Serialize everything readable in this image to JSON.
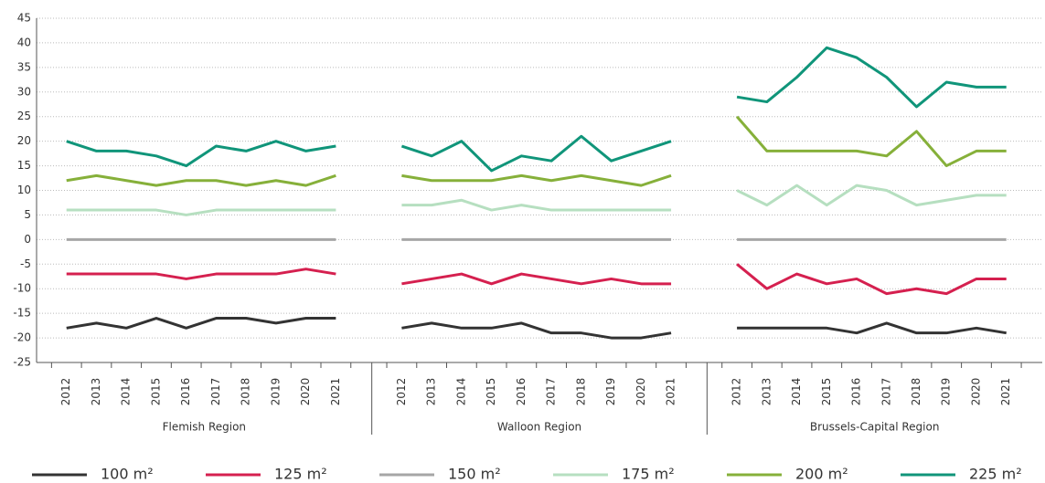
{
  "chart_data": {
    "type": "line",
    "ylim": [
      -25,
      45
    ],
    "yticks": [
      -25,
      -20,
      -15,
      -10,
      -5,
      0,
      5,
      10,
      15,
      20,
      25,
      30,
      35,
      40,
      45
    ],
    "grid": true,
    "group_labels": [
      "Flemish Region",
      "Walloon Region",
      "Brussels-Capital Region"
    ],
    "categories": [
      "2012",
      "2013",
      "2014",
      "2015",
      "2016",
      "2017",
      "2018",
      "2019",
      "2020",
      "2021",
      "2012",
      "2013",
      "2014",
      "2015",
      "2016",
      "2017",
      "2018",
      "2019",
      "2020",
      "2021",
      "2012",
      "2013",
      "2014",
      "2015",
      "2016",
      "2017",
      "2018",
      "2019",
      "2020",
      "2021"
    ],
    "series": [
      {
        "name": "100 m²",
        "color": "#333333",
        "values": [
          -18,
          -17,
          -18,
          -16,
          -18,
          -16,
          -16,
          -17,
          -16,
          -16,
          -18,
          -17,
          -18,
          -18,
          -17,
          -19,
          -19,
          -20,
          -20,
          -19,
          -18,
          -18,
          -18,
          -18,
          -19,
          -17,
          -19,
          -19,
          -18,
          -19
        ]
      },
      {
        "name": "125 m²",
        "color": "#d5204f",
        "values": [
          -7,
          -7,
          -7,
          -7,
          -8,
          -7,
          -7,
          -7,
          -6,
          -7,
          -9,
          -8,
          -7,
          -9,
          -7,
          -8,
          -9,
          -8,
          -9,
          -9,
          -5,
          -10,
          -7,
          -9,
          -8,
          -11,
          -10,
          -11,
          -8,
          -8
        ]
      },
      {
        "name": "150 m²",
        "color": "#a6a6a6",
        "values": [
          0,
          0,
          0,
          0,
          0,
          0,
          0,
          0,
          0,
          0,
          0,
          0,
          0,
          0,
          0,
          0,
          0,
          0,
          0,
          0,
          0,
          0,
          0,
          0,
          0,
          0,
          0,
          0,
          0,
          0
        ]
      },
      {
        "name": "175 m²",
        "color": "#b6dfc0",
        "values": [
          6,
          6,
          6,
          6,
          5,
          6,
          6,
          6,
          6,
          6,
          7,
          7,
          8,
          6,
          7,
          6,
          6,
          6,
          6,
          6,
          10,
          7,
          11,
          7,
          11,
          10,
          7,
          8,
          9,
          9
        ]
      },
      {
        "name": "200 m²",
        "color": "#86b03a",
        "values": [
          12,
          13,
          12,
          11,
          12,
          12,
          11,
          12,
          11,
          13,
          13,
          12,
          12,
          12,
          13,
          12,
          13,
          12,
          11,
          13,
          25,
          18,
          18,
          18,
          18,
          17,
          22,
          15,
          18,
          18
        ]
      },
      {
        "name": "225 m²",
        "color": "#10957a",
        "values": [
          20,
          18,
          18,
          17,
          15,
          19,
          18,
          20,
          18,
          19,
          19,
          17,
          20,
          14,
          17,
          16,
          21,
          16,
          18,
          20,
          29,
          28,
          33,
          39,
          37,
          33,
          27,
          32,
          31,
          31
        ]
      }
    ]
  }
}
